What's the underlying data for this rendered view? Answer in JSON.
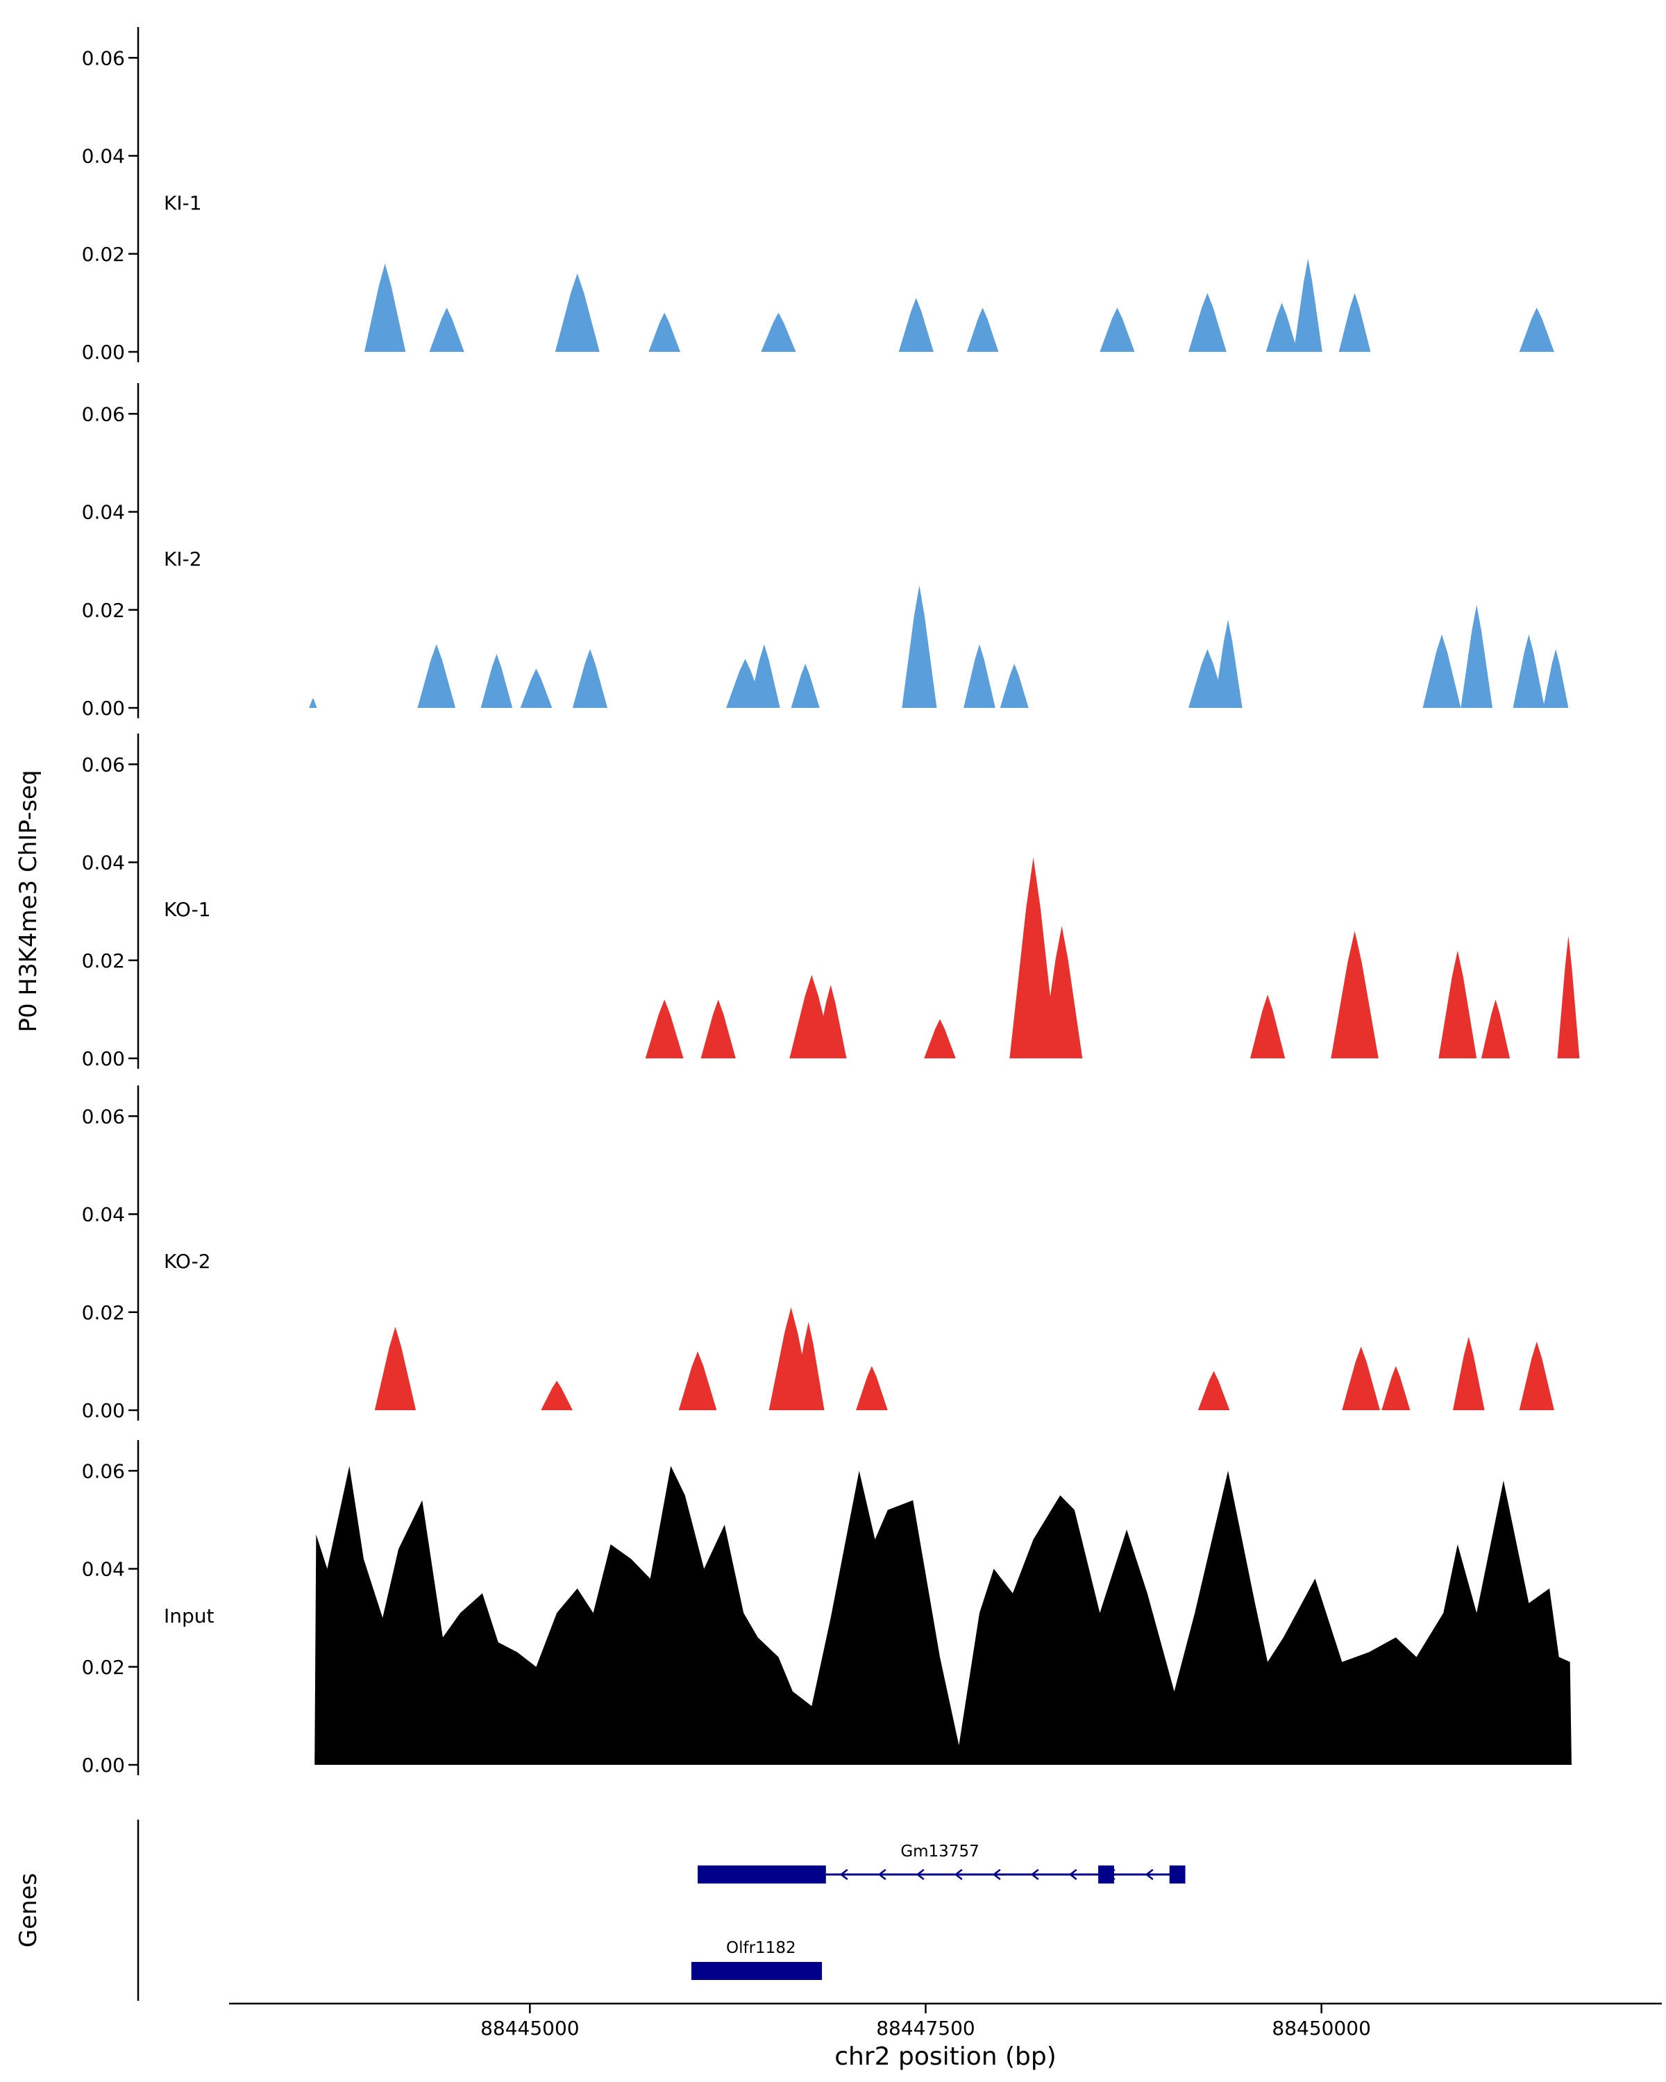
{
  "figure": {
    "ylabel": "P0 H3K4me3 ChIP-seq",
    "genes_axis_label": "Genes",
    "xlabel": "chr2 position (bp)"
  },
  "colors": {
    "ki_blue": "#5A9EDC",
    "ko_red": "#E8312D",
    "input_black": "#000000",
    "gene_navy": "#00008B",
    "axis": "#000000"
  },
  "chart_data": {
    "type": "area",
    "title": "",
    "xlabel": "chr2 position (bp)",
    "ylabel": "P0 H3K4me3 ChIP-seq",
    "x_domain": [
      88443100,
      88452150
    ],
    "x_ticks": [
      88445000,
      88447500,
      88450000
    ],
    "y_ticks": [
      0.0,
      0.02,
      0.04,
      0.06
    ],
    "y_max": 0.066,
    "grid": false,
    "legend": "none",
    "tracks": [
      {
        "name": "KI-1",
        "color": "#5A9EDC",
        "style": "peaks",
        "peaks": [
          [
            88444085,
            0.018,
            130
          ],
          [
            88444475,
            0.009,
            110
          ],
          [
            88445300,
            0.016,
            140
          ],
          [
            88445850,
            0.008,
            100
          ],
          [
            88446570,
            0.008,
            110
          ],
          [
            88447440,
            0.011,
            110
          ],
          [
            88447860,
            0.009,
            100
          ],
          [
            88448710,
            0.009,
            110
          ],
          [
            88449280,
            0.012,
            120
          ],
          [
            88449750,
            0.01,
            100
          ],
          [
            88449915,
            0.019,
            90
          ],
          [
            88450210,
            0.012,
            100
          ],
          [
            88451360,
            0.009,
            110
          ]
        ]
      },
      {
        "name": "KI-2",
        "color": "#5A9EDC",
        "style": "peaks",
        "peaks": [
          [
            88443630,
            0.002,
            25
          ],
          [
            88444410,
            0.013,
            120
          ],
          [
            88444790,
            0.011,
            100
          ],
          [
            88445040,
            0.008,
            100
          ],
          [
            88445380,
            0.012,
            110
          ],
          [
            88446360,
            0.01,
            120
          ],
          [
            88446480,
            0.013,
            100
          ],
          [
            88446740,
            0.009,
            90
          ],
          [
            88447460,
            0.025,
            110
          ],
          [
            88447840,
            0.013,
            100
          ],
          [
            88448060,
            0.009,
            90
          ],
          [
            88449280,
            0.012,
            120
          ],
          [
            88449410,
            0.018,
            90
          ],
          [
            88450760,
            0.015,
            120
          ],
          [
            88450980,
            0.021,
            100
          ],
          [
            88451310,
            0.015,
            100
          ],
          [
            88451480,
            0.012,
            80
          ]
        ]
      },
      {
        "name": "KO-1",
        "color": "#E8312D",
        "style": "peaks",
        "peaks": [
          [
            88445850,
            0.012,
            120
          ],
          [
            88446190,
            0.012,
            110
          ],
          [
            88446780,
            0.017,
            140
          ],
          [
            88446900,
            0.015,
            100
          ],
          [
            88447590,
            0.008,
            100
          ],
          [
            88448180,
            0.041,
            150
          ],
          [
            88448360,
            0.027,
            130
          ],
          [
            88449660,
            0.013,
            110
          ],
          [
            88450210,
            0.026,
            150
          ],
          [
            88450860,
            0.022,
            120
          ],
          [
            88451100,
            0.012,
            90
          ],
          [
            88451560,
            0.025,
            70
          ]
        ]
      },
      {
        "name": "KO-2",
        "color": "#E8312D",
        "style": "peaks",
        "peaks": [
          [
            88444150,
            0.017,
            130
          ],
          [
            88445170,
            0.006,
            100
          ],
          [
            88446060,
            0.012,
            120
          ],
          [
            88446650,
            0.021,
            140
          ],
          [
            88446760,
            0.018,
            100
          ],
          [
            88447160,
            0.009,
            100
          ],
          [
            88449320,
            0.008,
            100
          ],
          [
            88450250,
            0.013,
            120
          ],
          [
            88450470,
            0.009,
            90
          ],
          [
            88450930,
            0.015,
            100
          ],
          [
            88451360,
            0.014,
            110
          ]
        ]
      },
      {
        "name": "Input",
        "color": "#000000",
        "style": "points",
        "points": [
          [
            88443640,
            0.0
          ],
          [
            88443650,
            0.047
          ],
          [
            88443720,
            0.04
          ],
          [
            88443860,
            0.061
          ],
          [
            88443950,
            0.042
          ],
          [
            88444070,
            0.03
          ],
          [
            88444170,
            0.044
          ],
          [
            88444320,
            0.054
          ],
          [
            88444450,
            0.026
          ],
          [
            88444560,
            0.031
          ],
          [
            88444700,
            0.035
          ],
          [
            88444800,
            0.025
          ],
          [
            88444920,
            0.023
          ],
          [
            88445040,
            0.02
          ],
          [
            88445170,
            0.031
          ],
          [
            88445300,
            0.036
          ],
          [
            88445400,
            0.031
          ],
          [
            88445510,
            0.045
          ],
          [
            88445640,
            0.042
          ],
          [
            88445760,
            0.038
          ],
          [
            88445890,
            0.061
          ],
          [
            88445980,
            0.055
          ],
          [
            88446100,
            0.04
          ],
          [
            88446230,
            0.049
          ],
          [
            88446350,
            0.031
          ],
          [
            88446440,
            0.026
          ],
          [
            88446570,
            0.022
          ],
          [
            88446660,
            0.015
          ],
          [
            88446780,
            0.012
          ],
          [
            88446900,
            0.03
          ],
          [
            88447080,
            0.06
          ],
          [
            88447180,
            0.046
          ],
          [
            88447260,
            0.052
          ],
          [
            88447420,
            0.054
          ],
          [
            88447590,
            0.022
          ],
          [
            88447710,
            0.004
          ],
          [
            88447840,
            0.031
          ],
          [
            88447930,
            0.04
          ],
          [
            88448050,
            0.035
          ],
          [
            88448180,
            0.046
          ],
          [
            88448350,
            0.055
          ],
          [
            88448440,
            0.052
          ],
          [
            88448600,
            0.031
          ],
          [
            88448770,
            0.048
          ],
          [
            88448900,
            0.035
          ],
          [
            88449070,
            0.015
          ],
          [
            88449200,
            0.031
          ],
          [
            88449410,
            0.06
          ],
          [
            88449580,
            0.033
          ],
          [
            88449660,
            0.021
          ],
          [
            88449760,
            0.026
          ],
          [
            88449960,
            0.038
          ],
          [
            88450130,
            0.021
          ],
          [
            88450300,
            0.023
          ],
          [
            88450470,
            0.026
          ],
          [
            88450600,
            0.022
          ],
          [
            88450770,
            0.031
          ],
          [
            88450860,
            0.045
          ],
          [
            88450980,
            0.031
          ],
          [
            88451150,
            0.058
          ],
          [
            88451310,
            0.033
          ],
          [
            88451440,
            0.036
          ],
          [
            88451500,
            0.022
          ],
          [
            88451570,
            0.021
          ],
          [
            88451580,
            0.0
          ]
        ]
      }
    ],
    "genes": [
      {
        "name": "Gm13757",
        "strand": "-",
        "row": 0,
        "line": [
          88446870,
          88449110
        ],
        "exons": [
          [
            88446060,
            88446870
          ],
          [
            88448590,
            88448690
          ],
          [
            88449040,
            88449140
          ]
        ],
        "label_bp": 88447590
      },
      {
        "name": "Olfr1182",
        "strand": ".",
        "row": 1,
        "line": null,
        "exons": [
          [
            88446020,
            88446845
          ]
        ],
        "label_bp": 88446460
      }
    ],
    "gene_color": "#00008B"
  }
}
